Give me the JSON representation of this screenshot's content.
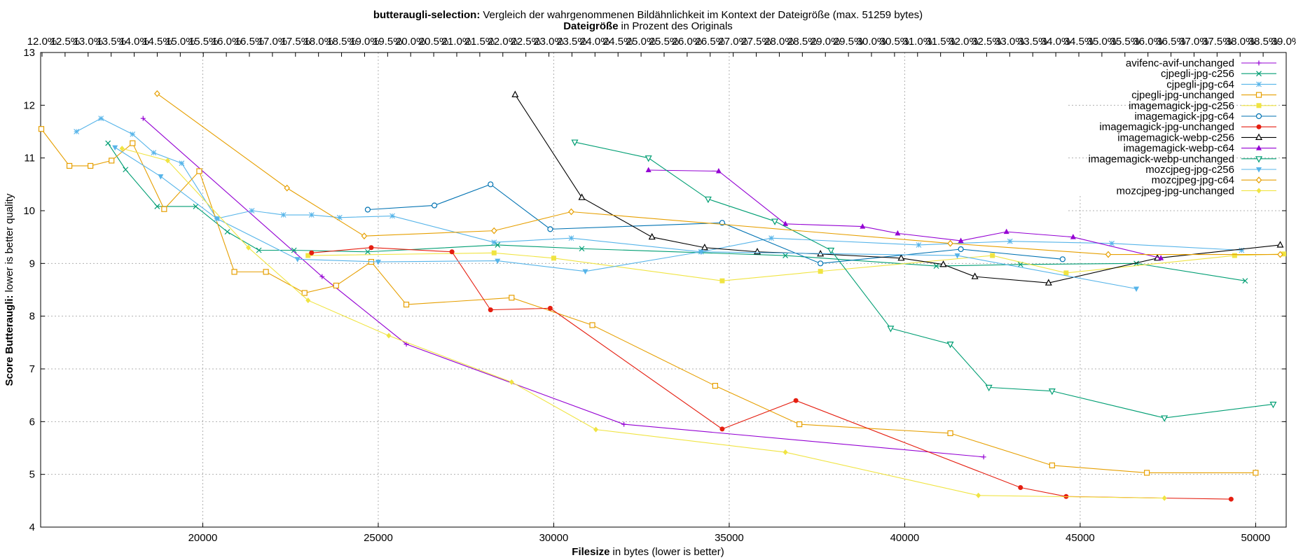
{
  "chart_data": {
    "type": "line",
    "title_bold": "butteraugli-selection:",
    "title_rest": "Vergleich der wahrgenommenen Bildähnlichkeit im Kontext der Dateigröße (max. 51259 bytes)",
    "x2label_bold": "Dateigröße",
    "x2label_rest": "in Prozent des Originals",
    "xlabel_bold": "Filesize",
    "xlabel_rest": "in bytes (lower is better)",
    "ylabel_bold": "Score Butteraugli:",
    "ylabel_rest": "lower is better quality",
    "xlim": [
      15380,
      50870
    ],
    "ylim": [
      4,
      13
    ],
    "x_ticks": [
      20000,
      25000,
      30000,
      35000,
      40000,
      45000,
      50000
    ],
    "y_ticks": [
      4,
      5,
      6,
      7,
      8,
      9,
      10,
      11,
      12,
      13
    ],
    "x2_ticks": [
      "12.0%",
      "12.5%",
      "13.0%",
      "13.5%",
      "14.0%",
      "14.5%",
      "15.0%",
      "15.5%",
      "16.0%",
      "16.5%",
      "17.0%",
      "17.5%",
      "18.0%",
      "18.5%",
      "19.0%",
      "19.5%",
      "20.0%",
      "20.5%",
      "21.0%",
      "21.5%",
      "22.0%",
      "22.5%",
      "23.0%",
      "23.5%",
      "24.0%",
      "24.5%",
      "25.0%",
      "25.5%",
      "26.0%",
      "26.5%",
      "27.0%",
      "27.5%",
      "28.0%",
      "28.5%",
      "29.0%",
      "29.5%",
      "30.0%",
      "30.5%",
      "31.0%",
      "31.5%",
      "32.0%",
      "32.5%",
      "33.0%",
      "33.5%",
      "34.0%",
      "34.5%",
      "35.0%",
      "35.5%",
      "36.0%",
      "36.5%",
      "37.0%",
      "37.5%",
      "38.0%",
      "38.5%",
      "39.0%"
    ],
    "grid": true,
    "legend_position": "top-right",
    "series": [
      {
        "name": "avifenc-avif-unchanged",
        "color": "#9400d3",
        "marker": "plus",
        "points": [
          [
            18300,
            11.75
          ],
          [
            23400,
            8.75
          ],
          [
            25800,
            7.47
          ],
          [
            32000,
            5.95
          ],
          [
            42250,
            5.33
          ]
        ]
      },
      {
        "name": "cjpegli-jpg-c256",
        "color": "#009e73",
        "marker": "x",
        "points": [
          [
            17300,
            11.28
          ],
          [
            17800,
            10.78
          ],
          [
            18700,
            10.08
          ],
          [
            19800,
            10.08
          ],
          [
            20700,
            9.6
          ],
          [
            21600,
            9.25
          ],
          [
            22600,
            9.25
          ],
          [
            24700,
            9.22
          ],
          [
            28400,
            9.35
          ],
          [
            30800,
            9.28
          ],
          [
            36600,
            9.15
          ],
          [
            40900,
            8.95
          ],
          [
            43300,
            8.98
          ],
          [
            46600,
            9.0
          ],
          [
            49700,
            8.67
          ]
        ]
      },
      {
        "name": "cjpegli-jpg-c64",
        "color": "#56b4e9",
        "marker": "asterisk",
        "points": [
          [
            16400,
            11.5
          ],
          [
            17100,
            11.75
          ],
          [
            18000,
            11.45
          ],
          [
            18600,
            11.1
          ],
          [
            19400,
            10.9
          ],
          [
            20400,
            9.85
          ],
          [
            21400,
            10.0
          ],
          [
            22300,
            9.92
          ],
          [
            23100,
            9.92
          ],
          [
            23900,
            9.87
          ],
          [
            25400,
            9.9
          ],
          [
            28300,
            9.4
          ],
          [
            30500,
            9.48
          ],
          [
            34200,
            9.22
          ],
          [
            36200,
            9.48
          ],
          [
            40400,
            9.35
          ],
          [
            43000,
            9.42
          ],
          [
            45900,
            9.38
          ],
          [
            49600,
            9.25
          ]
        ]
      },
      {
        "name": "cjpegli-jpg-unchanged",
        "color": "#e69f00",
        "marker": "square",
        "points": [
          [
            15400,
            11.55
          ],
          [
            16200,
            10.85
          ],
          [
            16800,
            10.85
          ],
          [
            17400,
            10.95
          ],
          [
            18000,
            11.28
          ],
          [
            18900,
            10.03
          ],
          [
            19900,
            10.75
          ],
          [
            20900,
            8.84
          ],
          [
            21800,
            8.84
          ],
          [
            22900,
            8.44
          ],
          [
            23800,
            8.58
          ],
          [
            24800,
            9.03
          ],
          [
            25800,
            8.22
          ],
          [
            28800,
            8.35
          ],
          [
            31100,
            7.83
          ],
          [
            34600,
            6.68
          ],
          [
            37000,
            5.95
          ],
          [
            41300,
            5.78
          ],
          [
            44200,
            5.17
          ],
          [
            46900,
            5.03
          ],
          [
            50000,
            5.03
          ]
        ]
      },
      {
        "name": "imagemagick-jpg-c256",
        "color": "#f0e442",
        "marker": "square-filled",
        "points": [
          [
            23000,
            9.15
          ],
          [
            28300,
            9.2
          ],
          [
            30000,
            9.1
          ],
          [
            34800,
            8.67
          ],
          [
            37600,
            8.85
          ],
          [
            42500,
            9.15
          ],
          [
            44600,
            8.82
          ],
          [
            49400,
            9.15
          ],
          [
            50800,
            9.18
          ]
        ]
      },
      {
        "name": "imagemagick-jpg-c64",
        "color": "#0072b2",
        "marker": "circle",
        "points": [
          [
            24700,
            10.02
          ],
          [
            26600,
            10.1
          ],
          [
            28200,
            10.5
          ],
          [
            29900,
            9.65
          ],
          [
            34800,
            9.77
          ],
          [
            37600,
            9.0
          ],
          [
            41600,
            9.27
          ],
          [
            44500,
            9.08
          ]
        ]
      },
      {
        "name": "imagemagick-jpg-unchanged",
        "color": "#e51e10",
        "marker": "circle-filled",
        "points": [
          [
            23100,
            9.2
          ],
          [
            24800,
            9.3
          ],
          [
            27100,
            9.22
          ],
          [
            28200,
            8.12
          ],
          [
            29900,
            8.15
          ],
          [
            34800,
            5.86
          ],
          [
            36900,
            6.4
          ],
          [
            43300,
            4.75
          ],
          [
            44600,
            4.58
          ],
          [
            49300,
            4.53
          ]
        ]
      },
      {
        "name": "imagemagick-webp-c256",
        "color": "#000000",
        "marker": "triangle",
        "points": [
          [
            28900,
            12.2
          ],
          [
            30800,
            10.25
          ],
          [
            32800,
            9.5
          ],
          [
            34300,
            9.3
          ],
          [
            35800,
            9.22
          ],
          [
            37600,
            9.18
          ],
          [
            39900,
            9.1
          ],
          [
            41100,
            8.98
          ],
          [
            42000,
            8.75
          ],
          [
            44100,
            8.63
          ],
          [
            47200,
            9.1
          ],
          [
            50700,
            9.35
          ]
        ]
      },
      {
        "name": "imagemagick-webp-c64",
        "color": "#9400d3",
        "marker": "triangle-filled",
        "points": [
          [
            32700,
            10.77
          ],
          [
            34700,
            10.75
          ],
          [
            36600,
            9.75
          ],
          [
            38800,
            9.7
          ],
          [
            39800,
            9.57
          ],
          [
            41600,
            9.43
          ],
          [
            42900,
            9.6
          ],
          [
            44800,
            9.5
          ],
          [
            47300,
            9.1
          ]
        ]
      },
      {
        "name": "imagemagick-webp-unchanged",
        "color": "#009e73",
        "marker": "triangle-down",
        "points": [
          [
            30600,
            11.3
          ],
          [
            32700,
            11.0
          ],
          [
            34400,
            10.22
          ],
          [
            36300,
            9.8
          ],
          [
            37900,
            9.25
          ],
          [
            39600,
            7.77
          ],
          [
            41300,
            7.47
          ],
          [
            42400,
            6.65
          ],
          [
            44200,
            6.58
          ],
          [
            47400,
            6.07
          ],
          [
            50500,
            6.33
          ]
        ]
      },
      {
        "name": "mozcjpeg-jpg-c256",
        "color": "#56b4e9",
        "marker": "triangle-down-filled",
        "points": [
          [
            17500,
            11.2
          ],
          [
            18800,
            10.65
          ],
          [
            20400,
            9.85
          ],
          [
            22700,
            9.08
          ],
          [
            25000,
            9.03
          ],
          [
            28400,
            9.05
          ],
          [
            30900,
            8.85
          ],
          [
            34200,
            9.22
          ],
          [
            41500,
            9.15
          ],
          [
            46600,
            8.52
          ]
        ]
      },
      {
        "name": "mozcjpeg-jpg-c64",
        "color": "#e69f00",
        "marker": "diamond",
        "points": [
          [
            18700,
            12.22
          ],
          [
            22400,
            10.43
          ],
          [
            24600,
            9.52
          ],
          [
            28300,
            9.62
          ],
          [
            30500,
            9.98
          ],
          [
            41300,
            9.38
          ],
          [
            45800,
            9.17
          ],
          [
            50700,
            9.17
          ]
        ]
      },
      {
        "name": "mozcjpeg-jpg-unchanged",
        "color": "#f0e442",
        "marker": "diamond-filled",
        "points": [
          [
            17700,
            11.18
          ],
          [
            19000,
            10.95
          ],
          [
            21300,
            9.3
          ],
          [
            23000,
            8.3
          ],
          [
            25300,
            7.63
          ],
          [
            28800,
            6.75
          ],
          [
            31200,
            5.85
          ],
          [
            36600,
            5.42
          ],
          [
            42100,
            4.6
          ],
          [
            47400,
            4.55
          ]
        ]
      }
    ]
  }
}
